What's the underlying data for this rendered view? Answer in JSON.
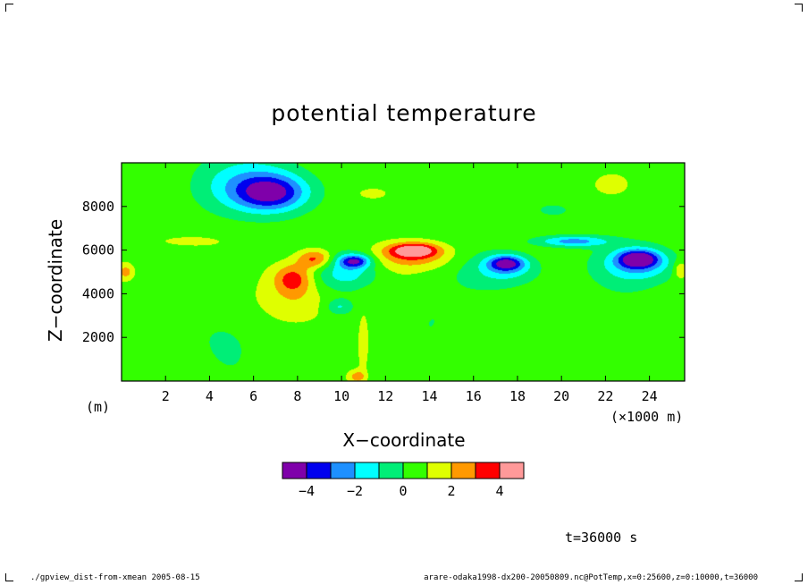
{
  "title": "potential temperature",
  "xlabel": "X−coordinate",
  "ylabel": "Z−coordinate",
  "x_unit_left": "(m)",
  "x_unit_right": "(×1000 m)",
  "time_label": "t=36000 s",
  "footer_left": "./gpview_dist-from-xmean  2005-08-15",
  "footer_right": "arare-odaka1998-dx200-20050809.nc@PotTemp,x=0:25600,z=0:10000,t=36000",
  "chart_data": {
    "type": "heatmap",
    "title": "potential temperature",
    "xlabel": "X−coordinate",
    "ylabel": "Z−coordinate",
    "x_unit": "×1000 m",
    "y_unit": "m",
    "xlim": [
      0,
      25.6
    ],
    "ylim": [
      0,
      10000
    ],
    "x_ticks": [
      2,
      4,
      6,
      8,
      10,
      12,
      14,
      16,
      18,
      20,
      22,
      24
    ],
    "x_tick_labels": [
      "2",
      "4",
      "6",
      "8",
      "10",
      "12",
      "14",
      "16",
      "18",
      "20",
      "22",
      "24"
    ],
    "y_ticks": [
      2000,
      4000,
      6000,
      8000
    ],
    "y_tick_labels": [
      "2000",
      "4000",
      "6000",
      "8000"
    ],
    "colorbar": {
      "levels": [
        -5,
        -4,
        -3,
        -2,
        -1,
        0,
        1,
        2,
        3,
        4,
        5
      ],
      "tick_values": [
        -4,
        -2,
        0,
        2,
        4
      ],
      "tick_labels": [
        "−4",
        "−2",
        "0",
        "2",
        "4"
      ],
      "colors": [
        "#7f00aa",
        "#0000ee",
        "#1e90ff",
        "#00ffff",
        "#00ee77",
        "#33ff00",
        "#dfff00",
        "#ff9900",
        "#ff0000",
        "#ff9999"
      ]
    },
    "background_value": 0.5,
    "features": [
      {
        "x": 6.8,
        "z": 8600,
        "value": -3.5,
        "sx": 1.6,
        "sz": 800
      },
      {
        "x": 6.0,
        "z": 9000,
        "value": -1.5,
        "sx": 2.6,
        "sz": 1200
      },
      {
        "x": 7.8,
        "z": 4700,
        "value": 3.5,
        "sx": 0.9,
        "sz": 700
      },
      {
        "x": 8.8,
        "z": 5600,
        "value": 3.5,
        "sx": 0.8,
        "sz": 450
      },
      {
        "x": 8.0,
        "z": 3600,
        "value": 1.8,
        "sx": 1.6,
        "sz": 1000
      },
      {
        "x": 10.6,
        "z": 5500,
        "value": -3.5,
        "sx": 0.7,
        "sz": 300
      },
      {
        "x": 10.3,
        "z": 5000,
        "value": -1.5,
        "sx": 1.4,
        "sz": 800
      },
      {
        "x": 9.9,
        "z": 3400,
        "value": -1.2,
        "sx": 0.6,
        "sz": 350
      },
      {
        "x": 13.3,
        "z": 6000,
        "value": 4.2,
        "sx": 1.1,
        "sz": 320
      },
      {
        "x": 13.3,
        "z": 5700,
        "value": 2.5,
        "sx": 1.8,
        "sz": 600
      },
      {
        "x": 17.5,
        "z": 5400,
        "value": -3.5,
        "sx": 0.8,
        "sz": 350
      },
      {
        "x": 17.5,
        "z": 5100,
        "value": -1.5,
        "sx": 1.6,
        "sz": 700
      },
      {
        "x": 20.5,
        "z": 6400,
        "value": -2.5,
        "sx": 1.6,
        "sz": 250
      },
      {
        "x": 23.5,
        "z": 5600,
        "value": -4.2,
        "sx": 0.9,
        "sz": 400
      },
      {
        "x": 23.5,
        "z": 5300,
        "value": -1.8,
        "sx": 1.8,
        "sz": 800
      },
      {
        "x": 3.0,
        "z": 6400,
        "value": 1.5,
        "sx": 1.5,
        "sz": 250
      },
      {
        "x": 11.5,
        "z": 8600,
        "value": 1.6,
        "sx": 0.9,
        "sz": 350
      },
      {
        "x": 22.2,
        "z": 9000,
        "value": 1.6,
        "sx": 0.6,
        "sz": 350
      },
      {
        "x": 19.7,
        "z": 7800,
        "value": 0.0,
        "sx": 1.0,
        "sz": 350
      },
      {
        "x": 0.2,
        "z": 5000,
        "value": 2.5,
        "sx": 0.4,
        "sz": 400
      },
      {
        "x": 25.4,
        "z": 5100,
        "value": 2.2,
        "sx": 0.3,
        "sz": 400
      },
      {
        "x": 4.5,
        "z": 2000,
        "value": 0.0,
        "sx": 1.6,
        "sz": 1400
      },
      {
        "x": 14.0,
        "z": 2600,
        "value": 0.0,
        "sx": 1.2,
        "sz": 1500
      },
      {
        "x": 19.0,
        "z": 2800,
        "value": 0.0,
        "sx": 1.6,
        "sz": 1400
      },
      {
        "x": 11.0,
        "z": 1500,
        "value": 1.5,
        "sx": 0.3,
        "sz": 1600
      },
      {
        "x": 10.7,
        "z": 200,
        "value": 2.5,
        "sx": 0.4,
        "sz": 300
      }
    ]
  }
}
